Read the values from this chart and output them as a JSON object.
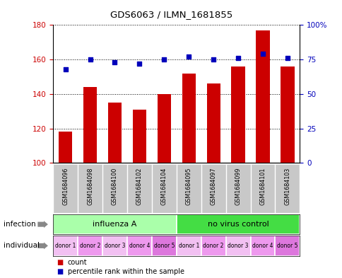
{
  "title": "GDS6063 / ILMN_1681855",
  "samples": [
    "GSM1684096",
    "GSM1684098",
    "GSM1684100",
    "GSM1684102",
    "GSM1684104",
    "GSM1684095",
    "GSM1684097",
    "GSM1684099",
    "GSM1684101",
    "GSM1684103"
  ],
  "counts": [
    118,
    144,
    135,
    131,
    140,
    152,
    146,
    156,
    177,
    156
  ],
  "percentiles": [
    68,
    75,
    73,
    72,
    75,
    77,
    75,
    76,
    79,
    76
  ],
  "ylim_left": [
    100,
    180
  ],
  "ylim_right": [
    0,
    100
  ],
  "yticks_left": [
    100,
    120,
    140,
    160,
    180
  ],
  "yticks_right": [
    0,
    25,
    50,
    75,
    100
  ],
  "yticklabels_right": [
    "0",
    "25",
    "50",
    "75",
    "100%"
  ],
  "infection_groups": [
    {
      "label": "influenza A",
      "span": [
        0,
        5
      ],
      "color": "#AAFFAA"
    },
    {
      "label": "no virus control",
      "span": [
        5,
        10
      ],
      "color": "#44DD44"
    }
  ],
  "individual_labels": [
    "donor 1",
    "donor 2",
    "donor 3",
    "donor 4",
    "donor 5",
    "donor 1",
    "donor 2",
    "donor 3",
    "donor 4",
    "donor 5"
  ],
  "ind_colors": [
    "#F2C0F2",
    "#EE99EE",
    "#F2C0F2",
    "#EE99EE",
    "#DD77DD",
    "#F2C0F2",
    "#EE99EE",
    "#F2C0F2",
    "#EE99EE",
    "#DD77DD"
  ],
  "bar_color": "#CC0000",
  "dot_color": "#0000BB",
  "bar_bottom": 100,
  "bg_color": "#FFFFFF",
  "sample_bg": "#C8C8C8",
  "left_label_color": "#CC0000",
  "right_label_color": "#0000BB"
}
